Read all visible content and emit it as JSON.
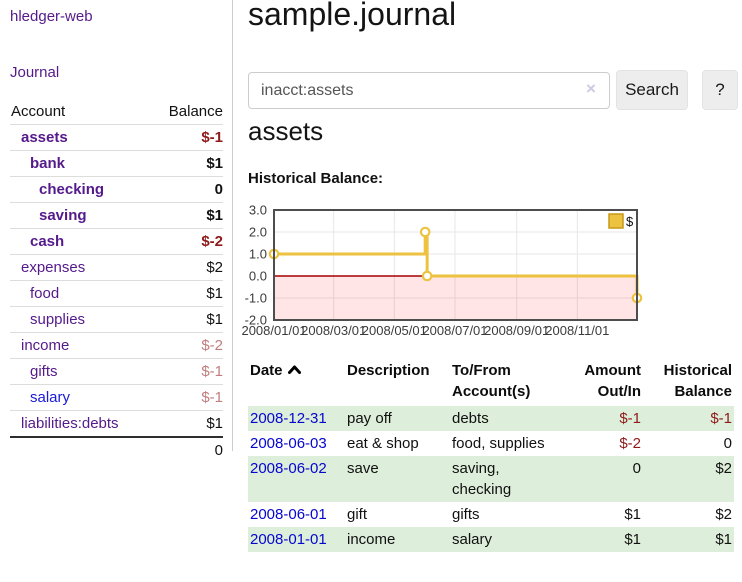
{
  "colors": {
    "accent_purple": "#551a8b",
    "unvisited_link_blue": "#1a1ad8",
    "date_link_blue": "#0606cf",
    "negative_strong": "#8f1a1a",
    "negative_dim": "#c27d7d",
    "row_stripe_green": "#ddeeda",
    "chart_line_gold": "#edc240",
    "chart_zero_line": "#a40000"
  },
  "nav": {
    "brand": "hledger-web",
    "journal": "Journal"
  },
  "sidebar": {
    "header": {
      "account": "Account",
      "balance": "Balance"
    },
    "accounts": [
      {
        "name": "assets",
        "balance": "$-1"
      },
      {
        "name": "bank",
        "balance": "$1"
      },
      {
        "name": "checking",
        "balance": "0"
      },
      {
        "name": "saving",
        "balance": "$1"
      },
      {
        "name": "cash",
        "balance": "$-2"
      },
      {
        "name": "expenses",
        "balance": "$2"
      },
      {
        "name": "food",
        "balance": "$1"
      },
      {
        "name": "supplies",
        "balance": "$1"
      },
      {
        "name": "income",
        "balance": "$-2"
      },
      {
        "name": "gifts",
        "balance": "$-1"
      },
      {
        "name": "salary",
        "balance": "$-1"
      },
      {
        "name": "liabilities:debts",
        "balance": "$1"
      }
    ],
    "total": "0"
  },
  "main": {
    "title": "sample.journal"
  },
  "search": {
    "value": "inacct:assets",
    "clear_icon": "×",
    "search_label": "Search",
    "help_label": "?"
  },
  "account_view": {
    "heading": "assets",
    "chart_title": "Historical Balance:"
  },
  "chart_data": {
    "type": "line",
    "style": "step-after",
    "title": "Historical Balance:",
    "xlim": [
      "2008-01-01",
      "2008-12-31"
    ],
    "ylim": [
      -2,
      3
    ],
    "grid": true,
    "y_ticks": [
      {
        "value": 3,
        "label": "3.0"
      },
      {
        "value": 2,
        "label": "2.0"
      },
      {
        "value": 1,
        "label": "1.0"
      },
      {
        "value": 0,
        "label": "0.0"
      },
      {
        "value": -1,
        "label": "-1.0"
      },
      {
        "value": -2,
        "label": "-2.0"
      }
    ],
    "x_ticks": [
      {
        "date": "2008-01-01",
        "label": "2008/01/01"
      },
      {
        "date": "2008-03-01",
        "label": "2008/03/01"
      },
      {
        "date": "2008-05-01",
        "label": "2008/05/01"
      },
      {
        "date": "2008-07-01",
        "label": "2008/07/01"
      },
      {
        "date": "2008-09-01",
        "label": "2008/09/01"
      },
      {
        "date": "2008-11-01",
        "label": "2008/11/01"
      }
    ],
    "series": [
      {
        "name": "$",
        "color": "#edc240",
        "points": [
          {
            "date": "2008-01-01",
            "value": 1
          },
          {
            "date": "2008-06-01",
            "value": 2
          },
          {
            "date": "2008-06-03",
            "value": 0
          },
          {
            "date": "2008-12-31",
            "value": -1
          }
        ]
      }
    ],
    "legend": {
      "label": "$",
      "position": "top-right"
    },
    "negative_region_fill": "rgba(255,0,0,0.10)",
    "zero_line_color": "#a40000"
  },
  "register": {
    "columns": {
      "date": "Date",
      "description": "Description",
      "tofrom": "To/From\nAccount(s)",
      "amount": "Amount\nOut/In",
      "balance": "Historical\nBalance"
    },
    "sort": {
      "column": "Date",
      "direction": "ascending"
    },
    "rows": [
      {
        "date": "2008-12-31",
        "description": "pay off",
        "accounts": "debts",
        "amount": "$-1",
        "balance": "$-1"
      },
      {
        "date": "2008-06-03",
        "description": "eat & shop",
        "accounts": "food, supplies",
        "amount": "$-2",
        "balance": "0"
      },
      {
        "date": "2008-06-02",
        "description": "save",
        "accounts": "saving,\nchecking",
        "amount": "0",
        "balance": "$2"
      },
      {
        "date": "2008-06-01",
        "description": "gift",
        "accounts": "gifts",
        "amount": "$1",
        "balance": "$2"
      },
      {
        "date": "2008-01-01",
        "description": "income",
        "accounts": "salary",
        "amount": "$1",
        "balance": "$1"
      }
    ]
  }
}
